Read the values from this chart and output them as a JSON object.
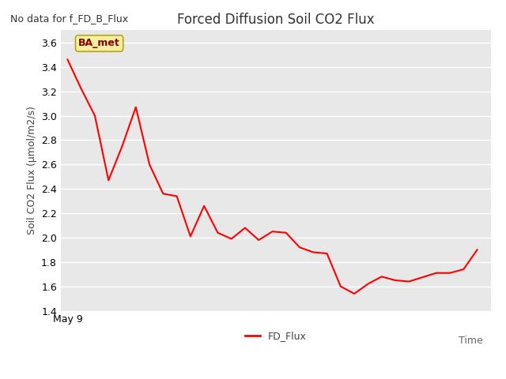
{
  "title": "Forced Diffusion Soil CO2 Flux",
  "ylabel": "Soil CO2 Flux (μmol/m2/s)",
  "xlabel": "Time",
  "no_data_text": "No data for f_FD_B_Flux",
  "x_tick_label": "May 9",
  "legend_label": "FD_Flux",
  "ylim": [
    1.4,
    3.7
  ],
  "yticks": [
    1.4,
    1.6,
    1.8,
    2.0,
    2.2,
    2.4,
    2.6,
    2.8,
    3.0,
    3.2,
    3.4,
    3.6
  ],
  "line_color": "#ff0000",
  "line_width": 1.5,
  "plot_bg_color": "#e8e8e8",
  "fig_bg_color": "#ffffff",
  "grid_color": "#ffffff",
  "ba_met_label": "BA_met",
  "ba_met_bg": "#f5f0a0",
  "ba_met_border": "#b8a020",
  "ba_met_text_color": "#8b0000",
  "x_values": [
    0,
    1,
    2,
    3,
    4,
    5,
    6,
    7,
    8,
    9,
    10,
    11,
    12,
    13,
    14,
    15,
    16,
    17,
    18,
    19,
    20,
    21,
    22,
    23,
    24,
    25,
    27,
    28,
    29,
    30
  ],
  "y_values": [
    3.46,
    3.22,
    3.0,
    2.47,
    2.75,
    3.07,
    2.6,
    2.36,
    2.34,
    2.01,
    2.26,
    2.04,
    1.99,
    2.08,
    1.98,
    2.05,
    2.04,
    1.92,
    1.88,
    1.87,
    1.6,
    1.54,
    1.62,
    1.68,
    1.65,
    1.64,
    1.71,
    1.71,
    1.74,
    1.9
  ],
  "title_fontsize": 12,
  "label_fontsize": 9,
  "tick_fontsize": 9,
  "no_data_fontsize": 9,
  "time_fontsize": 9,
  "time_color": "#666666",
  "no_data_color": "#333333"
}
